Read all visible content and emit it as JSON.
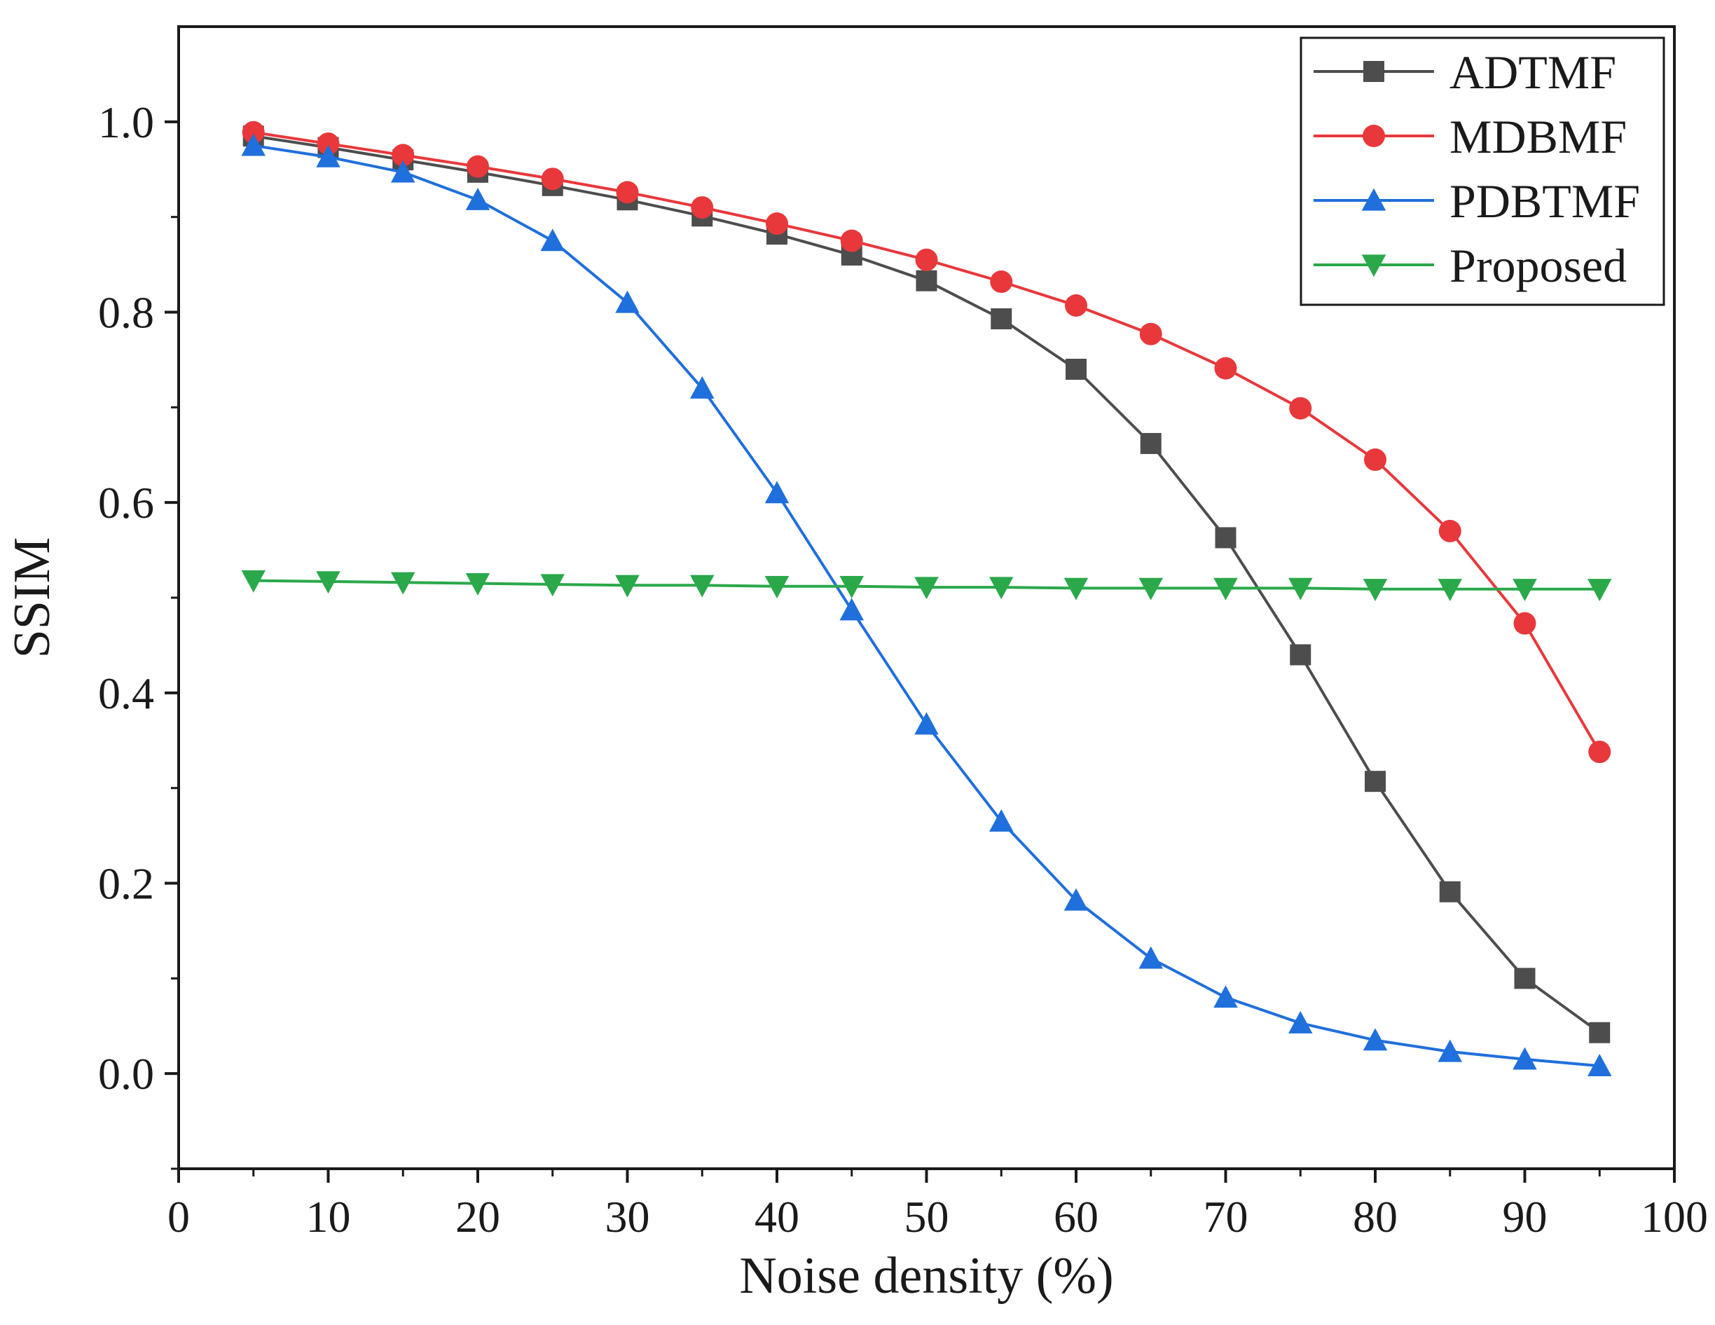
{
  "chart_data": {
    "type": "line",
    "title": "",
    "xlabel": "Noise density (%)",
    "ylabel": "SSIM",
    "xlim": [
      0,
      100
    ],
    "ylim": [
      -0.1,
      1.1
    ],
    "x_ticks": [
      0,
      10,
      20,
      30,
      40,
      50,
      60,
      70,
      80,
      90,
      100
    ],
    "x_tick_labels": [
      "0",
      "10",
      "20",
      "30",
      "40",
      "50",
      "60",
      "70",
      "80",
      "90",
      "100"
    ],
    "y_ticks": [
      0.0,
      0.2,
      0.4,
      0.6,
      0.8,
      1.0
    ],
    "y_tick_labels": [
      "0.0",
      "0.2",
      "0.4",
      "0.6",
      "0.8",
      "1.0"
    ],
    "y_minor_ticks": [
      -0.1,
      0.1,
      0.3,
      0.5,
      0.7,
      0.9
    ],
    "grid": false,
    "legend_position": "top-right",
    "x": [
      5,
      10,
      15,
      20,
      25,
      30,
      35,
      40,
      45,
      50,
      55,
      60,
      65,
      70,
      75,
      80,
      85,
      90,
      95
    ],
    "series": [
      {
        "name": "ADTMF",
        "color": "#4d4d4d",
        "marker": "square",
        "values": [
          0.985,
          0.973,
          0.96,
          0.947,
          0.933,
          0.918,
          0.901,
          0.882,
          0.86,
          0.833,
          0.793,
          0.74,
          0.662,
          0.563,
          0.44,
          0.307,
          0.191,
          0.1,
          0.043
        ]
      },
      {
        "name": "MDBMF",
        "color": "#e8383b",
        "marker": "circle",
        "values": [
          0.989,
          0.977,
          0.965,
          0.953,
          0.94,
          0.926,
          0.91,
          0.893,
          0.875,
          0.855,
          0.832,
          0.807,
          0.777,
          0.741,
          0.699,
          0.645,
          0.57,
          0.473,
          0.338
        ]
      },
      {
        "name": "PDBTMF",
        "color": "#1f6fdc",
        "marker": "triangle-up",
        "values": [
          0.975,
          0.963,
          0.947,
          0.918,
          0.875,
          0.81,
          0.72,
          0.61,
          0.487,
          0.367,
          0.265,
          0.182,
          0.121,
          0.08,
          0.053,
          0.035,
          0.023,
          0.015,
          0.008
        ]
      },
      {
        "name": "Proposed",
        "color": "#2aa84a",
        "marker": "triangle-down",
        "values": [
          0.518,
          0.517,
          0.516,
          0.515,
          0.514,
          0.513,
          0.513,
          0.512,
          0.512,
          0.511,
          0.511,
          0.51,
          0.51,
          0.51,
          0.51,
          0.509,
          0.509,
          0.509,
          0.509
        ]
      }
    ]
  }
}
